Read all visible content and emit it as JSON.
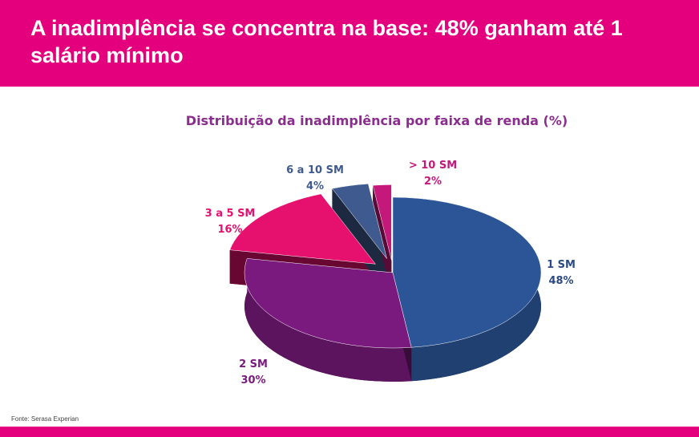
{
  "header": {
    "title": "A inadimplência se concentra na base: 48% ganham até 1 salário mínimo"
  },
  "chart_data": {
    "type": "pie",
    "title": "Distribuição da inadimplência por faixa de renda (%)",
    "categories": [
      "1 SM",
      "2 SM",
      "3 a 5 SM",
      "6 a 10 SM",
      "> 10 SM"
    ],
    "values": [
      48,
      30,
      16,
      4,
      2
    ],
    "value_labels": [
      "48%",
      "30%",
      "16%",
      "4%",
      "2%"
    ],
    "colors": [
      "#2b5597",
      "#7b1a7e",
      "#e6116f",
      "#3f5a8e",
      "#c4187a"
    ],
    "label_colors": [
      "#2b4a86",
      "#7b1a7e",
      "#e6116f",
      "#3f5a8e",
      "#c4187a"
    ]
  },
  "footer": {
    "source": "Fonte: Serasa Experian"
  }
}
